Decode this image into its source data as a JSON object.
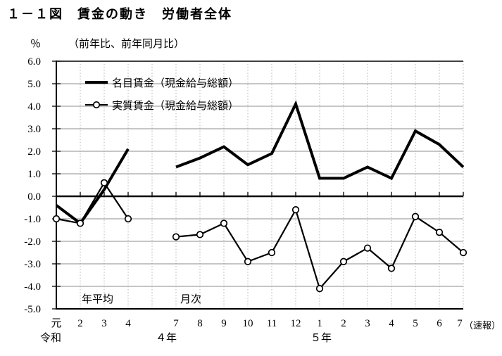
{
  "chart_data": {
    "type": "line",
    "title": "１－１図　賃金の動き　労働者全体",
    "unit": "％",
    "note": "（前年比、前年同月比）",
    "flash_note": "（速報）",
    "ylim": [
      -5.0,
      6.0
    ],
    "ytick_step": 1.0,
    "grid": true,
    "legend_position": "top-left-inside",
    "categories": [
      "元",
      "2",
      "3",
      "4",
      "",
      "7",
      "8",
      "9",
      "10",
      "11",
      "12",
      "1",
      "2",
      "3",
      "4",
      "5",
      "6",
      "7"
    ],
    "category_groups": [
      {
        "label": "令和",
        "anchor_index": 0
      },
      {
        "label": "４年",
        "anchor_index": 5
      },
      {
        "label": "５年",
        "anchor_index": 11
      }
    ],
    "section_labels": [
      {
        "label": "年平均",
        "section": "annual-average"
      },
      {
        "label": "月次",
        "section": "monthly"
      }
    ],
    "series": [
      {
        "name": "名目賃金（現金給与総額）",
        "marker": "none",
        "values": [
          -0.4,
          -1.2,
          0.3,
          2.1,
          null,
          1.3,
          1.7,
          2.2,
          1.4,
          1.9,
          4.1,
          0.8,
          0.8,
          1.3,
          0.8,
          2.9,
          2.3,
          1.3
        ]
      },
      {
        "name": "実質賃金（現金給与総額）",
        "marker": "circle",
        "values": [
          -1.0,
          -1.2,
          0.6,
          -1.0,
          null,
          -1.8,
          -1.7,
          -1.2,
          -2.9,
          -2.5,
          -0.6,
          -4.1,
          -2.9,
          -2.3,
          -3.2,
          -0.9,
          -1.6,
          -2.5
        ]
      }
    ]
  },
  "colors": {
    "line": "#000000",
    "h_gridline": "#8c8c8c",
    "v_gridline": "#b3b3b3",
    "background": "#ffffff"
  }
}
